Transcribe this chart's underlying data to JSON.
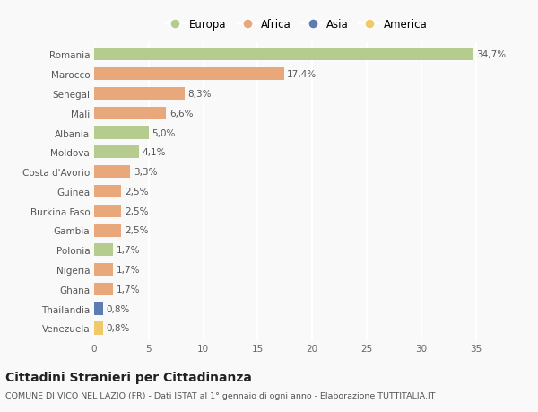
{
  "countries": [
    "Romania",
    "Marocco",
    "Senegal",
    "Mali",
    "Albania",
    "Moldova",
    "Costa d'Avorio",
    "Guinea",
    "Burkina Faso",
    "Gambia",
    "Polonia",
    "Nigeria",
    "Ghana",
    "Thailandia",
    "Venezuela"
  ],
  "values": [
    34.7,
    17.4,
    8.3,
    6.6,
    5.0,
    4.1,
    3.3,
    2.5,
    2.5,
    2.5,
    1.7,
    1.7,
    1.7,
    0.8,
    0.8
  ],
  "labels": [
    "34,7%",
    "17,4%",
    "8,3%",
    "6,6%",
    "5,0%",
    "4,1%",
    "3,3%",
    "2,5%",
    "2,5%",
    "2,5%",
    "1,7%",
    "1,7%",
    "1,7%",
    "0,8%",
    "0,8%"
  ],
  "continents": [
    "Europa",
    "Africa",
    "Africa",
    "Africa",
    "Europa",
    "Europa",
    "Africa",
    "Africa",
    "Africa",
    "Africa",
    "Europa",
    "Africa",
    "Africa",
    "Asia",
    "America"
  ],
  "colors": {
    "Europa": "#b5cc8e",
    "Africa": "#e8a87c",
    "Asia": "#5b7db1",
    "America": "#f0c96a"
  },
  "legend_order": [
    "Europa",
    "Africa",
    "Asia",
    "America"
  ],
  "legend_colors": [
    "#b5cc8e",
    "#e8a87c",
    "#5b7db1",
    "#f0c96a"
  ],
  "title": "Cittadini Stranieri per Cittadinanza",
  "subtitle": "COMUNE DI VICO NEL LAZIO (FR) - Dati ISTAT al 1° gennaio di ogni anno - Elaborazione TUTTITALIA.IT",
  "xlim": [
    0,
    37
  ],
  "xticks": [
    0,
    5,
    10,
    15,
    20,
    25,
    30,
    35
  ],
  "background_color": "#f9f9f9",
  "grid_color": "#ffffff",
  "bar_height": 0.65,
  "label_fontsize": 7.5,
  "tick_fontsize": 7.5,
  "title_fontsize": 10,
  "subtitle_fontsize": 6.8
}
